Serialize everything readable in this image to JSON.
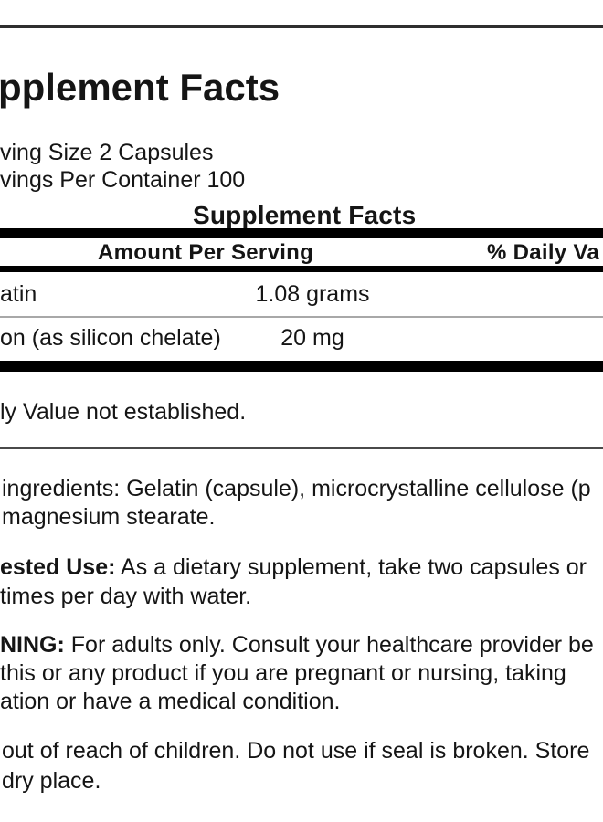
{
  "label": {
    "heading": "pplement Facts",
    "serving_size": "ving Size 2 Capsules",
    "servings_per_container": "vings Per Container 100",
    "table": {
      "title": "Supplement Facts",
      "col_amount": "Amount Per Serving",
      "col_daily_value": "% Daily Va",
      "rows": [
        {
          "name": "atin",
          "amount": "1.08 grams"
        },
        {
          "name": "on (as silicon chelate)",
          "amount": "20 mg"
        }
      ],
      "footnote": "ly Value not established."
    },
    "other_ingredients": {
      "line1": "ingredients: Gelatin (capsule), microcrystalline cellulose (p",
      "line2": "magnesium stearate."
    },
    "suggested_use": {
      "label": "ested Use:",
      "line1_rest": " As a dietary supplement, take two capsules or",
      "line2": "times per day with water."
    },
    "warning": {
      "label": "NING:",
      "line1_rest": " For adults only. Consult your healthcare provider be",
      "line2": "this or any product if you are pregnant or nursing, taking",
      "line3": "ation or have a medical condition."
    },
    "storage": {
      "line1": "out of reach of children. Do not use if seal is broken. Store",
      "line2": "dry place."
    },
    "colors": {
      "text": "#151515",
      "bar_black": "#000000",
      "top_rule_gray": "#2e2e2e",
      "divider_gray": "#a8a8a8"
    }
  }
}
